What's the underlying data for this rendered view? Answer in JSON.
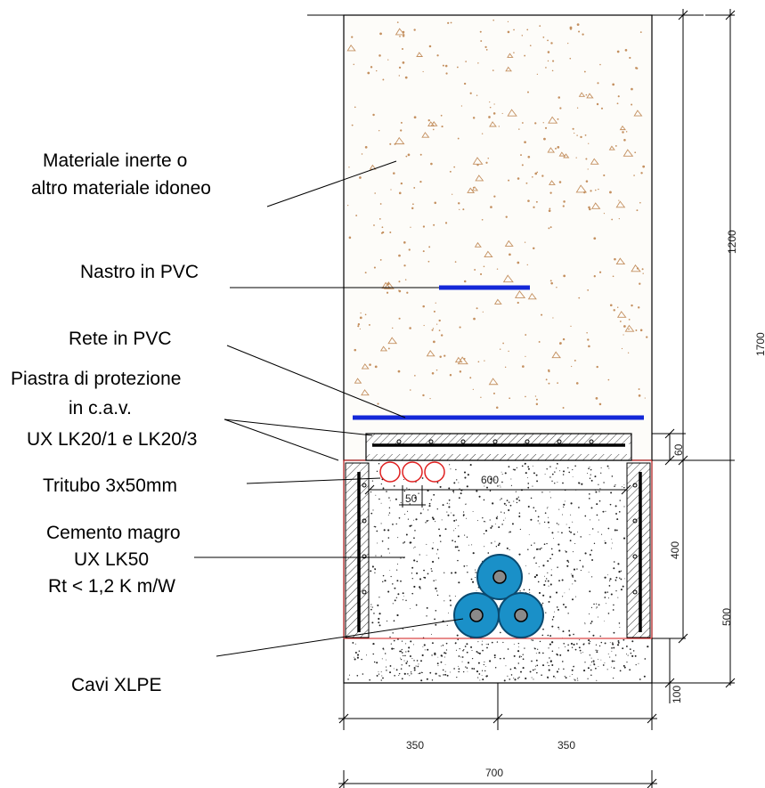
{
  "labels": {
    "inert_line1": "Materiale inerte o",
    "inert_line2": "altro materiale idoneo",
    "pvc_tape": "Nastro in PVC",
    "pvc_net": "Rete in PVC",
    "plate_line1": "Piastra di protezione",
    "plate_line2": "in c.a.v.",
    "plate_line3": "UX LK20/1 e LK20/3",
    "tritubo": "Tritubo 3x50mm",
    "cement_line1": "Cemento magro",
    "cement_line2": "UX LK50",
    "cement_line3": "Rt < 1,2 K m/W",
    "cables": "Cavi XLPE"
  },
  "dimensions": {
    "d1200": "1200",
    "d1700": "1700",
    "d60": "60",
    "d600": "600",
    "d50": "50",
    "d400": "400",
    "d500": "500",
    "d100": "100",
    "d350a": "350",
    "d350b": "350",
    "d700": "700"
  },
  "colors": {
    "pvc": "#1428d8",
    "cable_fill": "#1a90c8",
    "cable_core": "#8a8a8a",
    "tritubo": "#e02020",
    "aggregate": "#c49060",
    "red_line": "#d01818"
  }
}
